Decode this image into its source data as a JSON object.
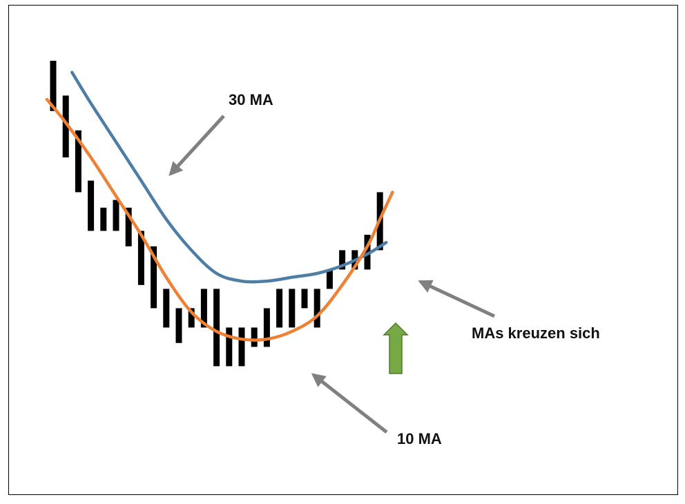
{
  "chart_data": {
    "type": "bar",
    "title": "",
    "xlabel": "",
    "ylabel": "",
    "ylim": [
      0,
      100
    ],
    "grid": false,
    "legend": "none",
    "bars": [
      {
        "low": 82,
        "high": 95
      },
      {
        "low": 70,
        "high": 86
      },
      {
        "low": 61,
        "high": 77
      },
      {
        "low": 51,
        "high": 64
      },
      {
        "low": 51,
        "high": 57
      },
      {
        "low": 51,
        "high": 59
      },
      {
        "low": 47,
        "high": 57
      },
      {
        "low": 37,
        "high": 51
      },
      {
        "low": 31,
        "high": 47
      },
      {
        "low": 26,
        "high": 36
      },
      {
        "low": 22,
        "high": 31
      },
      {
        "low": 26,
        "high": 31
      },
      {
        "low": 26,
        "high": 36
      },
      {
        "low": 16,
        "high": 36
      },
      {
        "low": 16,
        "high": 26
      },
      {
        "low": 16,
        "high": 26
      },
      {
        "low": 21,
        "high": 26
      },
      {
        "low": 21,
        "high": 31
      },
      {
        "low": 26,
        "high": 36
      },
      {
        "low": 26,
        "high": 36
      },
      {
        "low": 31,
        "high": 36
      },
      {
        "low": 26,
        "high": 36
      },
      {
        "low": 36,
        "high": 41
      },
      {
        "low": 41,
        "high": 46
      },
      {
        "low": 41,
        "high": 46
      },
      {
        "low": 41,
        "high": 50
      },
      {
        "low": 46,
        "high": 61
      }
    ],
    "series": [
      {
        "color": "#4e7da6",
        "x": [
          1.5,
          3,
          5,
          7,
          9,
          11,
          13,
          15,
          17,
          19,
          21,
          23,
          25,
          26.5
        ],
        "y": [
          92,
          84,
          74,
          64,
          54,
          46,
          40,
          38,
          38,
          39,
          40,
          42,
          45,
          48
        ]
      },
      {
        "color": "#ed8236",
        "x": [
          -0.5,
          1,
          3,
          5,
          7,
          9,
          11,
          13,
          15,
          17,
          19,
          21,
          23,
          25,
          26,
          27
        ],
        "y": [
          85,
          79,
          70,
          60,
          50,
          39,
          30,
          25,
          23,
          23,
          25,
          29,
          37,
          47,
          54,
          61
        ]
      }
    ],
    "annotations": [
      {
        "text": "30 MA"
      },
      {
        "text": "10 MA"
      },
      {
        "text": "MAs kreuzen sich"
      }
    ],
    "colors": {
      "bars": "#000000",
      "arrow_pointer": "#808080",
      "arrow_up": "#76a844",
      "arrow_up_border": "#4f7a2a"
    }
  }
}
